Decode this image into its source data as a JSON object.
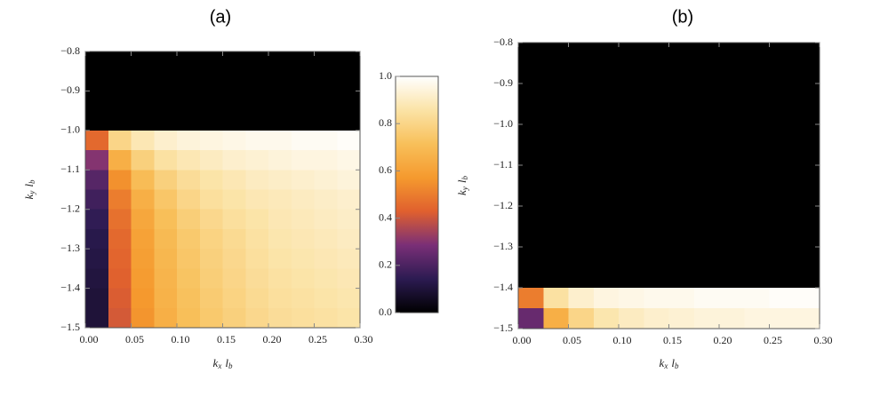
{
  "chart_data": [
    {
      "type": "heatmap",
      "title": "(a)",
      "xlabel": [
        "k",
        "x",
        "l",
        "b"
      ],
      "ylabel": [
        "k",
        "y",
        "l",
        "b"
      ],
      "xlim": [
        0,
        0.3
      ],
      "ylim": [
        -1.5,
        -0.8
      ],
      "xticks": [
        {
          "value": 0,
          "label": "0.00"
        },
        {
          "value": 0.05,
          "label": "0.05"
        },
        {
          "value": 0.1,
          "label": "0.10"
        },
        {
          "value": 0.15,
          "label": "0.15"
        },
        {
          "value": 0.2,
          "label": "0.20"
        },
        {
          "value": 0.25,
          "label": "0.25"
        },
        {
          "value": 0.3,
          "label": "0.30"
        }
      ],
      "yticks": [
        {
          "value": -0.8,
          "label": "−0.8"
        },
        {
          "value": -0.9,
          "label": "−0.9"
        },
        {
          "value": -1.0,
          "label": "−1.0"
        },
        {
          "value": -1.1,
          "label": "−1.1"
        },
        {
          "value": -1.2,
          "label": "−1.2"
        },
        {
          "value": -1.3,
          "label": "−1.3"
        },
        {
          "value": -1.4,
          "label": "−1.4"
        },
        {
          "value": -1.5,
          "label": "−1.5"
        }
      ],
      "xbins": [
        0,
        0.025,
        0.05,
        0.075,
        0.1,
        0.125,
        0.15,
        0.175,
        0.2,
        0.225,
        0.25,
        0.275,
        0.3
      ],
      "ybins": [
        -0.8,
        -0.85,
        -0.9,
        -0.95,
        -1.0,
        -1.05,
        -1.1,
        -1.15,
        -1.2,
        -1.25,
        -1.3,
        -1.35,
        -1.4,
        -1.45,
        -1.5
      ],
      "z": [
        [
          0,
          0,
          0,
          0,
          0,
          0,
          0,
          0,
          0,
          0,
          0,
          0
        ],
        [
          0,
          0,
          0,
          0,
          0,
          0,
          0,
          0,
          0,
          0,
          0,
          0
        ],
        [
          0,
          0,
          0,
          0,
          0,
          0,
          0,
          0,
          0,
          0,
          0,
          0
        ],
        [
          0,
          0,
          0,
          0,
          0,
          0,
          0,
          0,
          0,
          0,
          0,
          0
        ],
        [
          0.45,
          0.8,
          0.88,
          0.92,
          0.94,
          0.95,
          0.96,
          0.97,
          0.97,
          0.98,
          0.98,
          0.99
        ],
        [
          0.3,
          0.65,
          0.78,
          0.85,
          0.88,
          0.9,
          0.92,
          0.93,
          0.94,
          0.95,
          0.95,
          0.96
        ],
        [
          0.22,
          0.55,
          0.7,
          0.78,
          0.83,
          0.86,
          0.88,
          0.9,
          0.91,
          0.92,
          0.93,
          0.94
        ],
        [
          0.18,
          0.5,
          0.65,
          0.74,
          0.8,
          0.84,
          0.86,
          0.88,
          0.89,
          0.9,
          0.91,
          0.92
        ],
        [
          0.15,
          0.47,
          0.62,
          0.71,
          0.77,
          0.81,
          0.84,
          0.86,
          0.88,
          0.89,
          0.9,
          0.91
        ],
        [
          0.13,
          0.45,
          0.6,
          0.69,
          0.75,
          0.79,
          0.82,
          0.85,
          0.87,
          0.88,
          0.89,
          0.9
        ],
        [
          0.12,
          0.44,
          0.59,
          0.68,
          0.74,
          0.78,
          0.81,
          0.84,
          0.86,
          0.87,
          0.88,
          0.89
        ],
        [
          0.11,
          0.43,
          0.58,
          0.67,
          0.73,
          0.77,
          0.8,
          0.83,
          0.85,
          0.86,
          0.87,
          0.88
        ],
        [
          0.1,
          0.42,
          0.57,
          0.66,
          0.72,
          0.76,
          0.79,
          0.82,
          0.84,
          0.85,
          0.86,
          0.87
        ],
        [
          0.1,
          0.41,
          0.56,
          0.65,
          0.71,
          0.75,
          0.78,
          0.81,
          0.83,
          0.84,
          0.85,
          0.86
        ]
      ]
    },
    {
      "type": "heatmap",
      "title": "(b)",
      "xlabel": [
        "k",
        "x",
        "l",
        "b"
      ],
      "ylabel": [
        "k",
        "y",
        "l",
        "b"
      ],
      "xlim": [
        0,
        0.3
      ],
      "ylim": [
        -1.5,
        -0.8
      ],
      "xticks": [
        {
          "value": 0,
          "label": "0.00"
        },
        {
          "value": 0.05,
          "label": "0.05"
        },
        {
          "value": 0.1,
          "label": "0.10"
        },
        {
          "value": 0.15,
          "label": "0.15"
        },
        {
          "value": 0.2,
          "label": "0.20"
        },
        {
          "value": 0.25,
          "label": "0.25"
        },
        {
          "value": 0.3,
          "label": "0.30"
        }
      ],
      "yticks": [
        {
          "value": -0.8,
          "label": "−0.8"
        },
        {
          "value": -0.9,
          "label": "−0.9"
        },
        {
          "value": -1.0,
          "label": "−1.0"
        },
        {
          "value": -1.1,
          "label": "−1.1"
        },
        {
          "value": -1.2,
          "label": "−1.2"
        },
        {
          "value": -1.3,
          "label": "−1.3"
        },
        {
          "value": -1.4,
          "label": "−1.4"
        },
        {
          "value": -1.5,
          "label": "−1.5"
        }
      ],
      "xbins": [
        0,
        0.025,
        0.05,
        0.075,
        0.1,
        0.125,
        0.15,
        0.175,
        0.2,
        0.225,
        0.25,
        0.275,
        0.3
      ],
      "ybins": [
        -0.8,
        -0.85,
        -0.9,
        -0.95,
        -1.0,
        -1.05,
        -1.1,
        -1.15,
        -1.2,
        -1.25,
        -1.3,
        -1.35,
        -1.4,
        -1.45,
        -1.5
      ],
      "z": [
        [
          0,
          0,
          0,
          0,
          0,
          0,
          0,
          0,
          0,
          0,
          0,
          0
        ],
        [
          0,
          0,
          0,
          0,
          0,
          0,
          0,
          0,
          0,
          0,
          0,
          0
        ],
        [
          0,
          0,
          0,
          0,
          0,
          0,
          0,
          0,
          0,
          0,
          0,
          0
        ],
        [
          0,
          0,
          0,
          0,
          0,
          0,
          0,
          0,
          0,
          0,
          0,
          0
        ],
        [
          0,
          0,
          0,
          0,
          0,
          0,
          0,
          0,
          0,
          0,
          0,
          0
        ],
        [
          0,
          0,
          0,
          0,
          0,
          0,
          0,
          0,
          0,
          0,
          0,
          0
        ],
        [
          0,
          0,
          0,
          0,
          0,
          0,
          0,
          0,
          0,
          0,
          0,
          0
        ],
        [
          0,
          0,
          0,
          0,
          0,
          0,
          0,
          0,
          0,
          0,
          0,
          0
        ],
        [
          0,
          0,
          0,
          0,
          0,
          0,
          0,
          0,
          0,
          0,
          0,
          0
        ],
        [
          0,
          0,
          0,
          0,
          0,
          0,
          0,
          0,
          0,
          0,
          0,
          0
        ],
        [
          0,
          0,
          0,
          0,
          0,
          0,
          0,
          0,
          0,
          0,
          0,
          0
        ],
        [
          0,
          0,
          0,
          0,
          0,
          0,
          0,
          0,
          0,
          0,
          0,
          0
        ],
        [
          0.5,
          0.85,
          0.92,
          0.95,
          0.96,
          0.97,
          0.97,
          0.98,
          0.98,
          0.98,
          0.99,
          0.99
        ],
        [
          0.25,
          0.65,
          0.8,
          0.87,
          0.9,
          0.92,
          0.93,
          0.94,
          0.94,
          0.95,
          0.95,
          0.95
        ]
      ]
    }
  ],
  "colorbar": {
    "ylim": [
      0,
      1
    ],
    "yticks": [
      {
        "value": 0,
        "label": "0.0"
      },
      {
        "value": 0.2,
        "label": "0.2"
      },
      {
        "value": 0.4,
        "label": "0.4"
      },
      {
        "value": 0.6,
        "label": "0.6"
      },
      {
        "value": 0.8,
        "label": "0.8"
      },
      {
        "value": 1,
        "label": "1.0"
      }
    ],
    "colormap": [
      "#000000",
      "#2c1b52",
      "#7a2f77",
      "#e0602e",
      "#f59a2e",
      "#f8c05a",
      "#fbe3a6",
      "#ffffff"
    ]
  }
}
